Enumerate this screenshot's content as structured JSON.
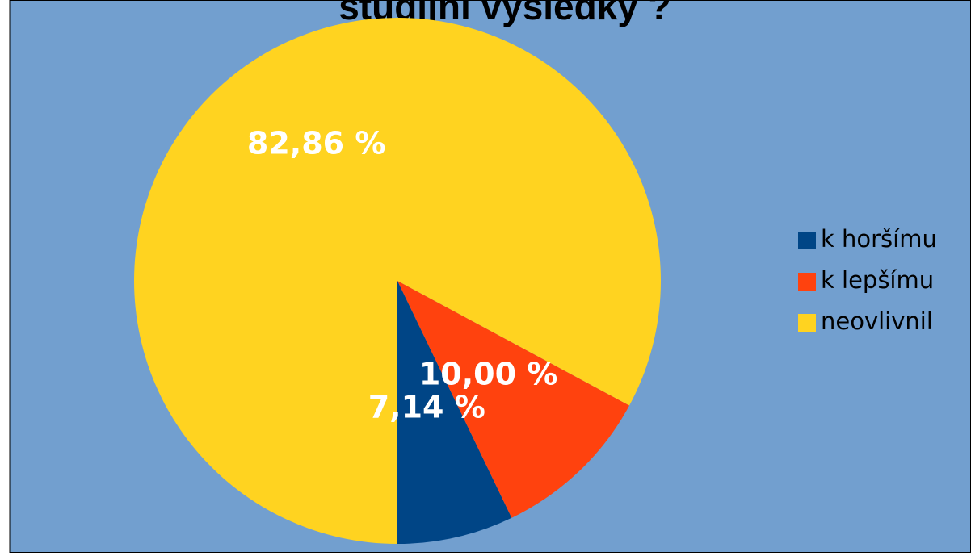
{
  "chart_data": {
    "type": "pie",
    "title": "studijní výsledky ?",
    "categories": [
      "k horšímu",
      "k lepšímu",
      "neovlivnil"
    ],
    "values": [
      7.14,
      10.0,
      82.86
    ],
    "value_labels": [
      "7,14 %",
      "10,00 %",
      "82,86 %"
    ],
    "colors": [
      "#004586",
      "#ff420e",
      "#ffd320"
    ],
    "legend": "right"
  }
}
